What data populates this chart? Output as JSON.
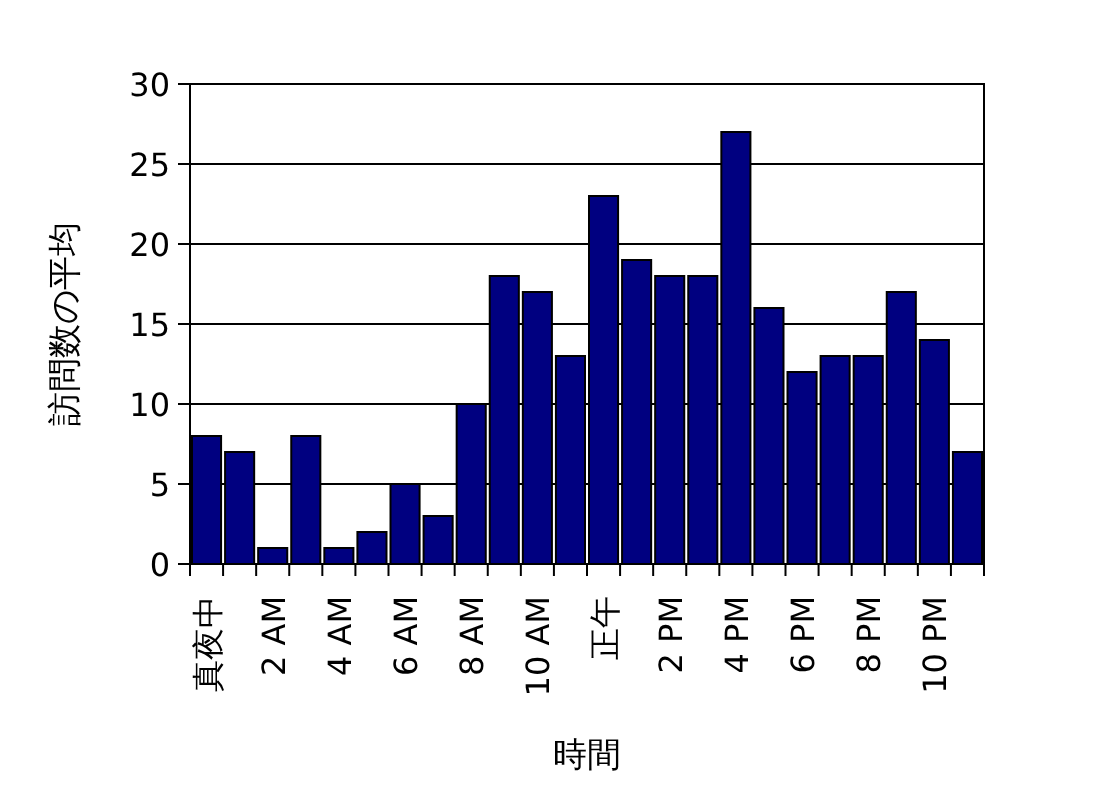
{
  "chart_data": {
    "type": "bar",
    "xlabel": "時間",
    "ylabel": "訪問数の平均",
    "categories": [
      "真夜中",
      null,
      "2 AM",
      null,
      "4 AM",
      null,
      "6 AM",
      null,
      "8 AM",
      null,
      "10 AM",
      null,
      "正午",
      null,
      "2 PM",
      null,
      "4 PM",
      null,
      "6 PM",
      null,
      "8 PM",
      null,
      "10 PM",
      null
    ],
    "values": [
      8,
      7,
      1,
      8,
      1,
      2,
      5,
      3,
      10,
      18,
      17,
      13,
      23,
      19,
      18,
      18,
      27,
      16,
      12,
      13,
      13,
      17,
      14,
      7
    ],
    "color": "#000080",
    "ylim": [
      0,
      30
    ],
    "yticks": [
      0,
      5,
      10,
      15,
      20,
      25,
      30
    ],
    "grid": "y"
  }
}
